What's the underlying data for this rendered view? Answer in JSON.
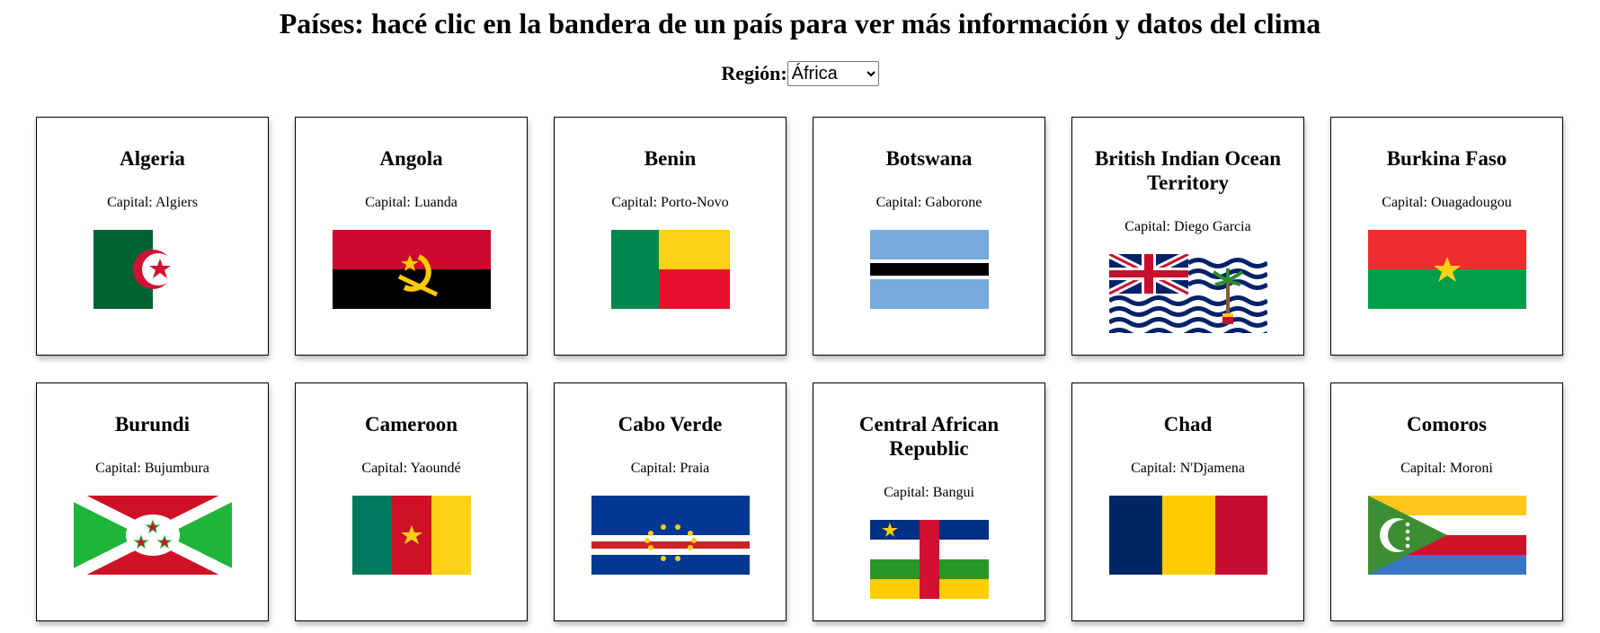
{
  "page": {
    "title": "Países: hacé clic en la bandera de un país para ver más información y datos del clima",
    "region_label": "Región:",
    "region_selected": "África",
    "capital_prefix": "Capital: "
  },
  "countries": [
    {
      "name": "Algeria",
      "capital": "Capital: Algiers",
      "flag": "algeria-flag-icon"
    },
    {
      "name": "Angola",
      "capital": "Capital: Luanda",
      "flag": "angola-flag-icon"
    },
    {
      "name": "Benin",
      "capital": "Capital: Porto-Novo",
      "flag": "benin-flag-icon"
    },
    {
      "name": "Botswana",
      "capital": "Capital: Gaborone",
      "flag": "botswana-flag-icon"
    },
    {
      "name": "British Indian Ocean Territory",
      "capital": "Capital: Diego Garcia",
      "flag": "biot-flag-icon"
    },
    {
      "name": "Burkina Faso",
      "capital": "Capital: Ouagadougou",
      "flag": "burkina-faso-flag-icon"
    },
    {
      "name": "Burundi",
      "capital": "Capital: Bujumbura",
      "flag": "burundi-flag-icon"
    },
    {
      "name": "Cameroon",
      "capital": "Capital: Yaoundé",
      "flag": "cameroon-flag-icon"
    },
    {
      "name": "Cabo Verde",
      "capital": "Capital: Praia",
      "flag": "cabo-verde-flag-icon"
    },
    {
      "name": "Central African Republic",
      "capital": "Capital: Bangui",
      "flag": "car-flag-icon"
    },
    {
      "name": "Chad",
      "capital": "Capital: N'Djamena",
      "flag": "chad-flag-icon"
    },
    {
      "name": "Comoros",
      "capital": "Capital: Moroni",
      "flag": "comoros-flag-icon"
    }
  ]
}
